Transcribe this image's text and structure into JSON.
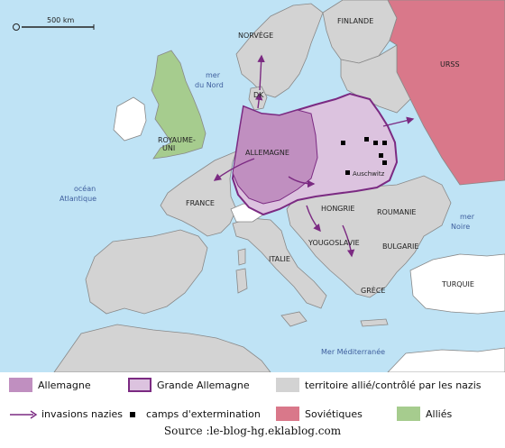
{
  "colors": {
    "sea": "#bfe3f5",
    "neutral_land": "#ffffff",
    "nazi_controlled": "#d3d3d3",
    "germany": "#c08fc0",
    "greater_germany": "#dcc3df",
    "greater_germany_border": "#7b2a82",
    "soviet": "#d9788a",
    "allies": "#a6cc8e",
    "invasion_arrow": "#7b2a82",
    "country_border": "#888888"
  },
  "scale_bar": {
    "label": "500 km"
  },
  "countries": {
    "finlande": "FINLANDE",
    "norvege": "NORVÈGE",
    "urss": "URSS",
    "dk": "DK",
    "royaume_uni_1": "ROYAUME-",
    "royaume_uni_2": "UNI",
    "allemagne": "ALLEMAGNE",
    "france": "FRANCE",
    "hongrie": "HONGRIE",
    "roumanie": "ROUMANIE",
    "yougoslavie": "YOUGOSLAVIE",
    "bulgarie": "BULGARIE",
    "italie": "ITALIE",
    "grece": "GRÈCE",
    "turquie": "TURQUIE"
  },
  "seas": {
    "mer_du_nord_1": "mer",
    "mer_du_nord_2": "du Nord",
    "ocean_1": "océan",
    "ocean_2": "Atlantique",
    "mer_noire_1": "mer",
    "mer_noire_2": "Noire",
    "mediterranee": "Mer Méditerranée"
  },
  "camps": {
    "auschwitz_label": "Auschwitz"
  },
  "legend": {
    "allemagne": "Allemagne",
    "grande_allemagne": "Grande Allemagne",
    "territoire": "territoire allié/contrôlé par les nazis",
    "invasions": "invasions nazies",
    "camps": "camps d'extermination",
    "sovietiques": "Soviétiques",
    "allies": "Alliés"
  },
  "source": "Source :le-blog-hg.eklablog.com"
}
